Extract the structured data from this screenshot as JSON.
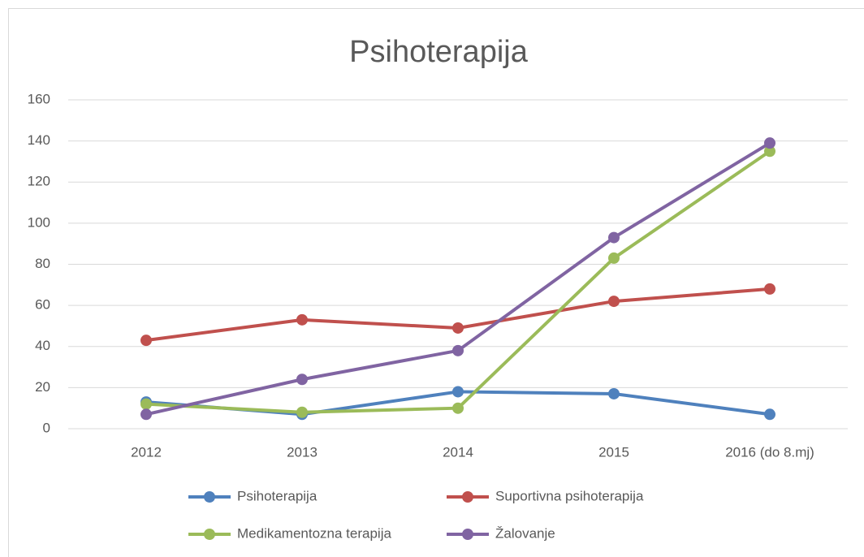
{
  "chart_data": {
    "type": "line",
    "title": "Psihoterapija",
    "categories": [
      "2012",
      "2013",
      "2014",
      "2015",
      "2016 (do 8.mj)"
    ],
    "series": [
      {
        "name": "Psihoterapija",
        "color": "#4f81bd",
        "values": [
          13,
          7,
          18,
          17,
          7
        ]
      },
      {
        "name": "Suportivna psihoterapija",
        "color": "#c0504d",
        "values": [
          43,
          53,
          49,
          62,
          68
        ]
      },
      {
        "name": "Medikamentozna terapija",
        "color": "#9bbb59",
        "values": [
          12,
          8,
          10,
          83,
          135
        ]
      },
      {
        "name": "Žalovanje",
        "color": "#8064a2",
        "values": [
          7,
          24,
          38,
          93,
          139
        ]
      }
    ],
    "ylim": [
      0,
      160
    ],
    "yticks": [
      0,
      20,
      40,
      60,
      80,
      100,
      120,
      140,
      160
    ],
    "grid": true,
    "legend": "bottom"
  }
}
